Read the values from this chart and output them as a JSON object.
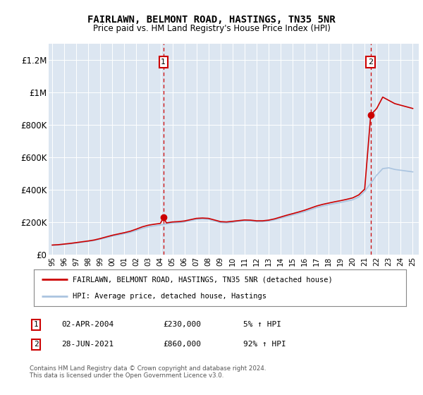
{
  "title": "FAIRLAWN, BELMONT ROAD, HASTINGS, TN35 5NR",
  "subtitle": "Price paid vs. HM Land Registry's House Price Index (HPI)",
  "ylim": [
    0,
    1300000
  ],
  "yticks": [
    0,
    200000,
    400000,
    600000,
    800000,
    1000000,
    1200000
  ],
  "ytick_labels": [
    "£0",
    "£200K",
    "£400K",
    "£600K",
    "£800K",
    "£1M",
    "£1.2M"
  ],
  "bg_color": "#dce6f1",
  "hpi_color": "#aac4e0",
  "price_color": "#cc0000",
  "vline_color": "#cc0000",
  "transaction1_x": 2004.25,
  "transaction1_y": 230000,
  "transaction2_x": 2021.5,
  "transaction2_y": 860000,
  "legend_line1": "FAIRLAWN, BELMONT ROAD, HASTINGS, TN35 5NR (detached house)",
  "legend_line2": "HPI: Average price, detached house, Hastings",
  "table_row1_num": "1",
  "table_row1_date": "02-APR-2004",
  "table_row1_price": "£230,000",
  "table_row1_hpi": "5% ↑ HPI",
  "table_row2_num": "2",
  "table_row2_date": "28-JUN-2021",
  "table_row2_price": "£860,000",
  "table_row2_hpi": "92% ↑ HPI",
  "footer": "Contains HM Land Registry data © Crown copyright and database right 2024.\nThis data is licensed under the Open Government Licence v3.0.",
  "hpi_x": [
    1995.0,
    1995.5,
    1996.0,
    1996.5,
    1997.0,
    1997.5,
    1998.0,
    1998.5,
    1999.0,
    1999.5,
    2000.0,
    2000.5,
    2001.0,
    2001.5,
    2002.0,
    2002.5,
    2003.0,
    2003.5,
    2004.0,
    2004.5,
    2005.0,
    2005.5,
    2006.0,
    2006.5,
    2007.0,
    2007.5,
    2008.0,
    2008.5,
    2009.0,
    2009.5,
    2010.0,
    2010.5,
    2011.0,
    2011.5,
    2012.0,
    2012.5,
    2013.0,
    2013.5,
    2014.0,
    2014.5,
    2015.0,
    2015.5,
    2016.0,
    2016.5,
    2017.0,
    2017.5,
    2018.0,
    2018.5,
    2019.0,
    2019.5,
    2020.0,
    2020.5,
    2021.0,
    2021.5,
    2022.0,
    2022.5,
    2023.0,
    2023.5,
    2024.0,
    2024.5,
    2025.0
  ],
  "hpi_y": [
    58000,
    60000,
    64000,
    67000,
    72000,
    77000,
    82000,
    88000,
    96000,
    105000,
    115000,
    122000,
    130000,
    138000,
    150000,
    163000,
    172000,
    178000,
    183000,
    190000,
    196000,
    198000,
    202000,
    210000,
    218000,
    220000,
    218000,
    208000,
    198000,
    196000,
    200000,
    205000,
    208000,
    207000,
    203000,
    203000,
    207000,
    215000,
    225000,
    235000,
    245000,
    255000,
    265000,
    278000,
    290000,
    300000,
    308000,
    315000,
    322000,
    330000,
    338000,
    355000,
    390000,
    440000,
    490000,
    530000,
    535000,
    525000,
    520000,
    515000,
    510000
  ],
  "price_x": [
    1995.0,
    1995.5,
    1996.0,
    1996.5,
    1997.0,
    1997.5,
    1998.0,
    1998.5,
    1999.0,
    1999.5,
    2000.0,
    2000.5,
    2001.0,
    2001.5,
    2002.0,
    2002.5,
    2003.0,
    2003.5,
    2004.0,
    2004.25,
    2004.5,
    2005.0,
    2005.5,
    2006.0,
    2006.5,
    2007.0,
    2007.5,
    2008.0,
    2008.5,
    2009.0,
    2009.5,
    2010.0,
    2010.5,
    2011.0,
    2011.5,
    2012.0,
    2012.5,
    2013.0,
    2013.5,
    2014.0,
    2014.5,
    2015.0,
    2015.5,
    2016.0,
    2016.5,
    2017.0,
    2017.5,
    2018.0,
    2018.5,
    2019.0,
    2019.5,
    2020.0,
    2020.5,
    2021.0,
    2021.5,
    2022.0,
    2022.5,
    2023.0,
    2023.5,
    2024.0,
    2024.5,
    2025.0
  ],
  "price_y": [
    60000,
    62000,
    66000,
    70000,
    75000,
    80000,
    85000,
    91000,
    100000,
    110000,
    120000,
    128000,
    136000,
    145000,
    158000,
    172000,
    182000,
    188000,
    193000,
    230000,
    196000,
    202000,
    204000,
    208000,
    216000,
    224000,
    226000,
    224000,
    214000,
    204000,
    202000,
    206000,
    210000,
    214000,
    213000,
    209000,
    209000,
    213000,
    221000,
    232000,
    243000,
    253000,
    263000,
    274000,
    287000,
    300000,
    310000,
    318000,
    326000,
    333000,
    341000,
    350000,
    368000,
    404000,
    860000,
    900000,
    970000,
    950000,
    930000,
    920000,
    910000,
    900000
  ],
  "xtick_years": [
    1995,
    1996,
    1997,
    1998,
    1999,
    2000,
    2001,
    2002,
    2003,
    2004,
    2005,
    2006,
    2007,
    2008,
    2009,
    2010,
    2011,
    2012,
    2013,
    2014,
    2015,
    2016,
    2017,
    2018,
    2019,
    2020,
    2021,
    2022,
    2023,
    2024,
    2025
  ]
}
